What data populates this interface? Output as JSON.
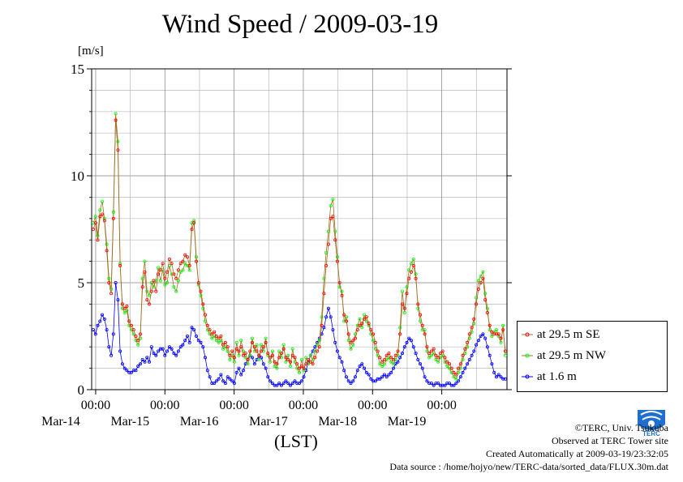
{
  "page": {
    "title": "Wind Speed / 2009-03-19",
    "unit_label": "[m/s]",
    "xaxis_label": "(LST)",
    "footer": {
      "copyright": "©TERC, Univ. Tsukuba",
      "observed": "Observed at TERC Tower site",
      "created": "Created Automatically at 2009-03-19/23:32:05",
      "source": "Data source : /home/hojyo/new/TERC-data/sorted_data/FLUX.30m.dat"
    },
    "logo_text": "TERC"
  },
  "chart_data": {
    "type": "line",
    "title": "Wind Speed / 2009-03-19",
    "ylabel": "[m/s]",
    "xlabel": "(LST)",
    "ylim": [
      0,
      15
    ],
    "xlim_days": [
      0,
      6
    ],
    "yticks": [
      "0",
      "5",
      "10",
      "15"
    ],
    "xticks": [
      {
        "time": "00:00",
        "date": "Mar-14"
      },
      {
        "time": "00:00",
        "date": "Mar-15"
      },
      {
        "time": "00:00",
        "date": "Mar-16"
      },
      {
        "time": "00:00",
        "date": "Mar-17"
      },
      {
        "time": "00:00",
        "date": "Mar-18"
      },
      {
        "time": "00:00",
        "date": "Mar-19"
      }
    ],
    "grid": true,
    "legend_position": "right-bottom",
    "series": [
      {
        "name": "at 29.5 m SE",
        "color": "#ff0000",
        "line_color": "#a07020",
        "values": [
          7.5,
          7.8,
          7.0,
          8.1,
          8.2,
          7.9,
          6.5,
          5.0,
          4.5,
          8.0,
          12.6,
          11.2,
          5.8,
          4.0,
          3.8,
          3.9,
          3.2,
          3.0,
          2.8,
          2.5,
          2.3,
          2.6,
          4.8,
          5.5,
          4.2,
          4.0,
          4.6,
          5.1,
          4.6,
          5.4,
          5.6,
          5.9,
          5.2,
          5.5,
          6.1,
          5.9,
          5.4,
          5.2,
          5.6,
          5.9,
          6.0,
          6.3,
          6.2,
          5.8,
          7.5,
          7.8,
          6.0,
          5.0,
          4.6,
          4.0,
          3.5,
          3.0,
          2.8,
          2.6,
          2.7,
          2.5,
          2.4,
          2.5,
          2.1,
          2.2,
          2.0,
          1.6,
          1.8,
          1.5,
          1.9,
          1.8,
          2.0,
          1.6,
          1.7,
          1.4,
          1.8,
          2.2,
          2.0,
          1.8,
          1.6,
          1.8,
          2.0,
          2.2,
          1.7,
          1.5,
          1.6,
          1.3,
          1.2,
          1.5,
          1.7,
          1.9,
          1.5,
          1.4,
          1.3,
          1.6,
          1.5,
          1.2,
          1.0,
          1.1,
          1.0,
          1.2,
          1.4,
          1.3,
          1.2,
          1.5,
          1.8,
          2.0,
          3.0,
          4.5,
          5.8,
          6.8,
          8.0,
          8.1,
          7.0,
          6.0,
          5.0,
          4.4,
          3.5,
          3.2,
          2.6,
          2.2,
          2.3,
          2.4,
          2.8,
          3.0,
          3.1,
          3.3,
          3.4,
          3.1,
          2.8,
          2.6,
          2.2,
          1.8,
          1.5,
          1.3,
          1.4,
          1.6,
          1.7,
          1.5,
          1.4,
          1.6,
          1.8,
          2.6,
          4.0,
          3.8,
          4.5,
          5.2,
          5.5,
          5.8,
          5.2,
          4.0,
          3.5,
          3.0,
          2.6,
          2.0,
          1.7,
          1.8,
          1.9,
          1.6,
          1.5,
          1.7,
          1.8,
          1.5,
          1.3,
          1.2,
          1.0,
          0.8,
          0.7,
          1.0,
          1.2,
          1.6,
          1.9,
          2.2,
          2.6,
          2.9,
          3.3,
          4.0,
          4.7,
          5.0,
          5.2,
          4.2,
          3.6,
          3.0,
          2.7,
          2.6,
          2.6,
          2.6,
          2.4,
          2.8,
          1.8
        ]
      },
      {
        "name": "at 29.5 m NW",
        "color": "#00ff00",
        "line_color": "#a07020",
        "values": [
          7.8,
          8.1,
          7.2,
          8.4,
          8.8,
          8.0,
          6.8,
          5.2,
          4.7,
          8.3,
          12.9,
          11.6,
          5.9,
          3.8,
          3.6,
          3.7,
          3.0,
          2.8,
          2.6,
          2.3,
          2.1,
          2.4,
          5.2,
          6.0,
          4.6,
          4.4,
          5.0,
          4.8,
          5.1,
          5.7,
          5.1,
          5.6,
          4.9,
          5.0,
          5.8,
          5.4,
          4.8,
          4.6,
          5.1,
          5.5,
          5.6,
          5.9,
          5.8,
          5.6,
          7.8,
          7.9,
          6.2,
          4.9,
          4.4,
          3.8,
          3.2,
          2.8,
          2.6,
          2.4,
          2.5,
          2.3,
          2.2,
          2.3,
          1.9,
          2.0,
          1.8,
          1.4,
          1.6,
          1.3,
          2.2,
          1.6,
          2.3,
          1.8,
          1.5,
          1.2,
          1.6,
          2.4,
          1.8,
          2.1,
          1.4,
          2.1,
          1.8,
          2.4,
          1.6,
          1.3,
          1.8,
          1.1,
          1.0,
          1.8,
          1.5,
          2.1,
          1.3,
          1.6,
          1.1,
          1.9,
          1.3,
          1.0,
          0.8,
          1.4,
          0.9,
          1.5,
          1.2,
          1.6,
          1.4,
          1.8,
          2.1,
          2.3,
          3.4,
          5.2,
          6.4,
          7.4,
          8.6,
          8.9,
          7.4,
          6.2,
          4.8,
          4.6,
          3.2,
          3.4,
          2.3,
          1.9,
          2.1,
          2.6,
          3.0,
          3.3,
          2.9,
          3.5,
          3.2,
          3.0,
          2.6,
          2.3,
          1.9,
          1.6,
          1.2,
          1.1,
          1.2,
          1.4,
          1.5,
          1.3,
          1.2,
          1.4,
          1.6,
          2.9,
          4.6,
          3.6,
          4.8,
          5.6,
          5.9,
          6.1,
          5.4,
          3.8,
          3.2,
          2.8,
          2.8,
          1.8,
          1.5,
          1.6,
          1.7,
          1.4,
          1.3,
          1.5,
          1.6,
          1.3,
          1.1,
          1.0,
          0.8,
          0.6,
          0.5,
          0.8,
          1.0,
          1.4,
          1.7,
          2.0,
          2.4,
          2.7,
          3.1,
          4.3,
          5.1,
          5.3,
          5.5,
          4.5,
          3.8,
          2.8,
          2.5,
          2.7,
          2.8,
          2.5,
          2.2,
          3.0,
          1.6
        ]
      },
      {
        "name": "at 1.6 m",
        "color": "#0000ff",
        "line_color": "#0000ff",
        "values": [
          2.8,
          2.6,
          3.0,
          3.2,
          3.5,
          3.3,
          2.8,
          2.0,
          1.6,
          2.6,
          5.0,
          4.2,
          1.8,
          1.2,
          1.0,
          0.9,
          0.8,
          0.8,
          0.9,
          0.9,
          1.1,
          1.2,
          1.4,
          1.3,
          1.5,
          1.3,
          2.0,
          1.7,
          1.6,
          1.8,
          1.9,
          1.9,
          1.6,
          1.8,
          2.0,
          1.9,
          1.7,
          1.6,
          1.8,
          2.0,
          2.1,
          2.3,
          2.5,
          2.2,
          2.9,
          2.8,
          2.5,
          2.3,
          2.2,
          2.0,
          1.5,
          0.9,
          0.6,
          0.3,
          0.3,
          0.4,
          0.5,
          0.7,
          0.4,
          0.3,
          0.6,
          0.5,
          0.4,
          0.3,
          0.8,
          1.0,
          0.7,
          0.9,
          1.2,
          1.4,
          1.6,
          1.5,
          1.2,
          1.4,
          1.6,
          1.5,
          1.2,
          1.0,
          0.6,
          0.4,
          0.3,
          0.2,
          0.2,
          0.3,
          0.2,
          0.3,
          0.4,
          0.3,
          0.2,
          0.3,
          0.4,
          0.3,
          0.3,
          0.4,
          0.6,
          0.9,
          1.3,
          1.6,
          1.8,
          2.0,
          2.2,
          2.4,
          2.6,
          2.9,
          3.4,
          3.8,
          3.4,
          2.8,
          2.2,
          1.8,
          1.5,
          1.3,
          0.9,
          0.6,
          0.4,
          0.3,
          0.4,
          0.6,
          0.9,
          1.1,
          1.2,
          1.0,
          0.8,
          0.7,
          0.5,
          0.4,
          0.4,
          0.5,
          0.5,
          0.6,
          0.7,
          0.6,
          0.7,
          0.8,
          1.0,
          1.2,
          1.3,
          1.5,
          1.7,
          2.0,
          2.2,
          2.4,
          2.3,
          2.0,
          1.7,
          1.4,
          1.2,
          1.0,
          0.6,
          0.4,
          0.3,
          0.3,
          0.2,
          0.3,
          0.3,
          0.2,
          0.2,
          0.2,
          0.3,
          0.3,
          0.2,
          0.2,
          0.3,
          0.4,
          0.6,
          0.8,
          1.0,
          1.2,
          1.4,
          1.6,
          1.8,
          2.1,
          2.3,
          2.5,
          2.6,
          2.4,
          2.0,
          1.6,
          1.2,
          0.8,
          0.6,
          0.7,
          0.6,
          0.5,
          0.5
        ]
      }
    ]
  }
}
